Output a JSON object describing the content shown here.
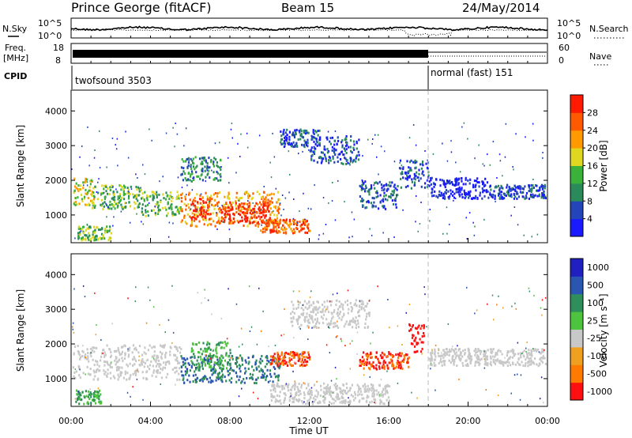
{
  "header": {
    "title": "Prince George (fitACF)",
    "beam": "Beam 15",
    "date": "24/May/2014"
  },
  "nsky_panel": {
    "left_label": "N.Sky",
    "left_ticks": [
      "10^5",
      "10^0"
    ],
    "right_ticks": [
      "10^5",
      "10^0"
    ],
    "right_label": "N.Search"
  },
  "freq_panel": {
    "left_label_1": "Freq.",
    "left_label_2": "[MHz]",
    "left_ticks": [
      "18",
      "8"
    ],
    "right_ticks": [
      "60",
      "0"
    ],
    "right_label": "Nave"
  },
  "cpid_panel": {
    "label": "CPID",
    "modes": [
      {
        "name": "twofsound 3503",
        "start_hour": 0
      },
      {
        "name": "normal (fast) 151",
        "start_hour": 18
      }
    ]
  },
  "power_panel": {
    "ylabel": "Slant Range [km]",
    "yticks": [
      "4000",
      "3000",
      "2000",
      "1000"
    ],
    "colorbar_label": "Power [dB]",
    "colorbar_ticks": [
      "28",
      "24",
      "20",
      "16",
      "12",
      "8",
      "4"
    ],
    "colors": [
      "#1a1aff",
      "#2445b8",
      "#2a8a5a",
      "#3ab23a",
      "#e0d820",
      "#ff9a00",
      "#ff5a00",
      "#ff1a00"
    ]
  },
  "velocity_panel": {
    "ylabel": "Slant Range [km]",
    "yticks": [
      "4000",
      "3000",
      "2000",
      "1000"
    ],
    "colorbar_label": "Velocity [m s⁻¹]",
    "colorbar_ticks": [
      "1000",
      "500",
      "100",
      "25",
      "-25",
      "-100",
      "-500",
      "-1000"
    ],
    "colors": [
      "#2020c0",
      "#2a55b0",
      "#2f8f5a",
      "#4ec43e",
      "#c8c8c8",
      "#f0a020",
      "#ff7a00",
      "#ff1010"
    ],
    "ground_scatter_color": "#c8c8c8"
  },
  "time_axis": {
    "label": "Time UT",
    "ticks": [
      "00:00",
      "04:00",
      "08:00",
      "12:00",
      "16:00",
      "20:00",
      "00:00"
    ]
  },
  "chart_data": {
    "type": "heatmap",
    "x_unit": "hours UT",
    "xlim": [
      0,
      24
    ],
    "ylim": [
      200,
      4600
    ],
    "power_blobs": [
      {
        "t": [
          0.1,
          1.2
        ],
        "r": [
          1300,
          2100
        ],
        "level": 4
      },
      {
        "t": [
          1.0,
          3.5
        ],
        "r": [
          1200,
          1900
        ],
        "level": 3
      },
      {
        "t": [
          3.5,
          5.5
        ],
        "r": [
          1000,
          1700
        ],
        "level": 3
      },
      {
        "t": [
          5.5,
          7.0
        ],
        "r": [
          700,
          1700
        ],
        "level": 5
      },
      {
        "t": [
          6.0,
          7.0
        ],
        "r": [
          900,
          1500
        ],
        "level": 7
      },
      {
        "t": [
          7.0,
          10.5
        ],
        "r": [
          700,
          1700
        ],
        "level": 5
      },
      {
        "t": [
          7.5,
          10.0
        ],
        "r": [
          800,
          1400
        ],
        "level": 7
      },
      {
        "t": [
          9.5,
          12.0
        ],
        "r": [
          500,
          900
        ],
        "level": 6
      },
      {
        "t": [
          5.5,
          7.5
        ],
        "r": [
          2000,
          2700
        ],
        "level": 2
      },
      {
        "t": [
          10.5,
          12.5
        ],
        "r": [
          3000,
          3500
        ],
        "level": 1
      },
      {
        "t": [
          12.0,
          14.5
        ],
        "r": [
          2500,
          3300
        ],
        "level": 1
      },
      {
        "t": [
          14.5,
          16.5
        ],
        "r": [
          1200,
          2000
        ],
        "level": 1
      },
      {
        "t": [
          16.5,
          18.0
        ],
        "r": [
          1800,
          2600
        ],
        "level": 1
      },
      {
        "t": [
          18.0,
          21.0
        ],
        "r": [
          1500,
          2100
        ],
        "level": 0
      },
      {
        "t": [
          21.0,
          23.9
        ],
        "r": [
          1500,
          1900
        ],
        "level": 1
      },
      {
        "t": [
          0.3,
          2.0
        ],
        "r": [
          300,
          700
        ],
        "level": 3
      }
    ],
    "velocity_blobs": [
      {
        "t": [
          0.0,
          5.5
        ],
        "r": [
          1000,
          2000
        ],
        "vel": 25
      },
      {
        "t": [
          5.5,
          10.5
        ],
        "r": [
          900,
          1700
        ],
        "vel": 500
      },
      {
        "t": [
          6.0,
          8.0
        ],
        "r": [
          1300,
          2100
        ],
        "vel": 100
      },
      {
        "t": [
          10.0,
          12.0
        ],
        "r": [
          1400,
          1800
        ],
        "vel": -500
      },
      {
        "t": [
          10.0,
          16.0
        ],
        "r": [
          300,
          900
        ],
        "vel": 25
      },
      {
        "t": [
          14.5,
          17.0
        ],
        "r": [
          1300,
          1800
        ],
        "vel": -500
      },
      {
        "t": [
          17.0,
          17.8
        ],
        "r": [
          1800,
          2600
        ],
        "vel": -1000
      },
      {
        "t": [
          11.0,
          15.0
        ],
        "r": [
          2500,
          3300
        ],
        "vel": 25
      },
      {
        "t": [
          18.0,
          23.9
        ],
        "r": [
          1400,
          1900
        ],
        "vel": 25
      },
      {
        "t": [
          0.2,
          1.5
        ],
        "r": [
          300,
          700
        ],
        "vel": 100
      }
    ]
  }
}
